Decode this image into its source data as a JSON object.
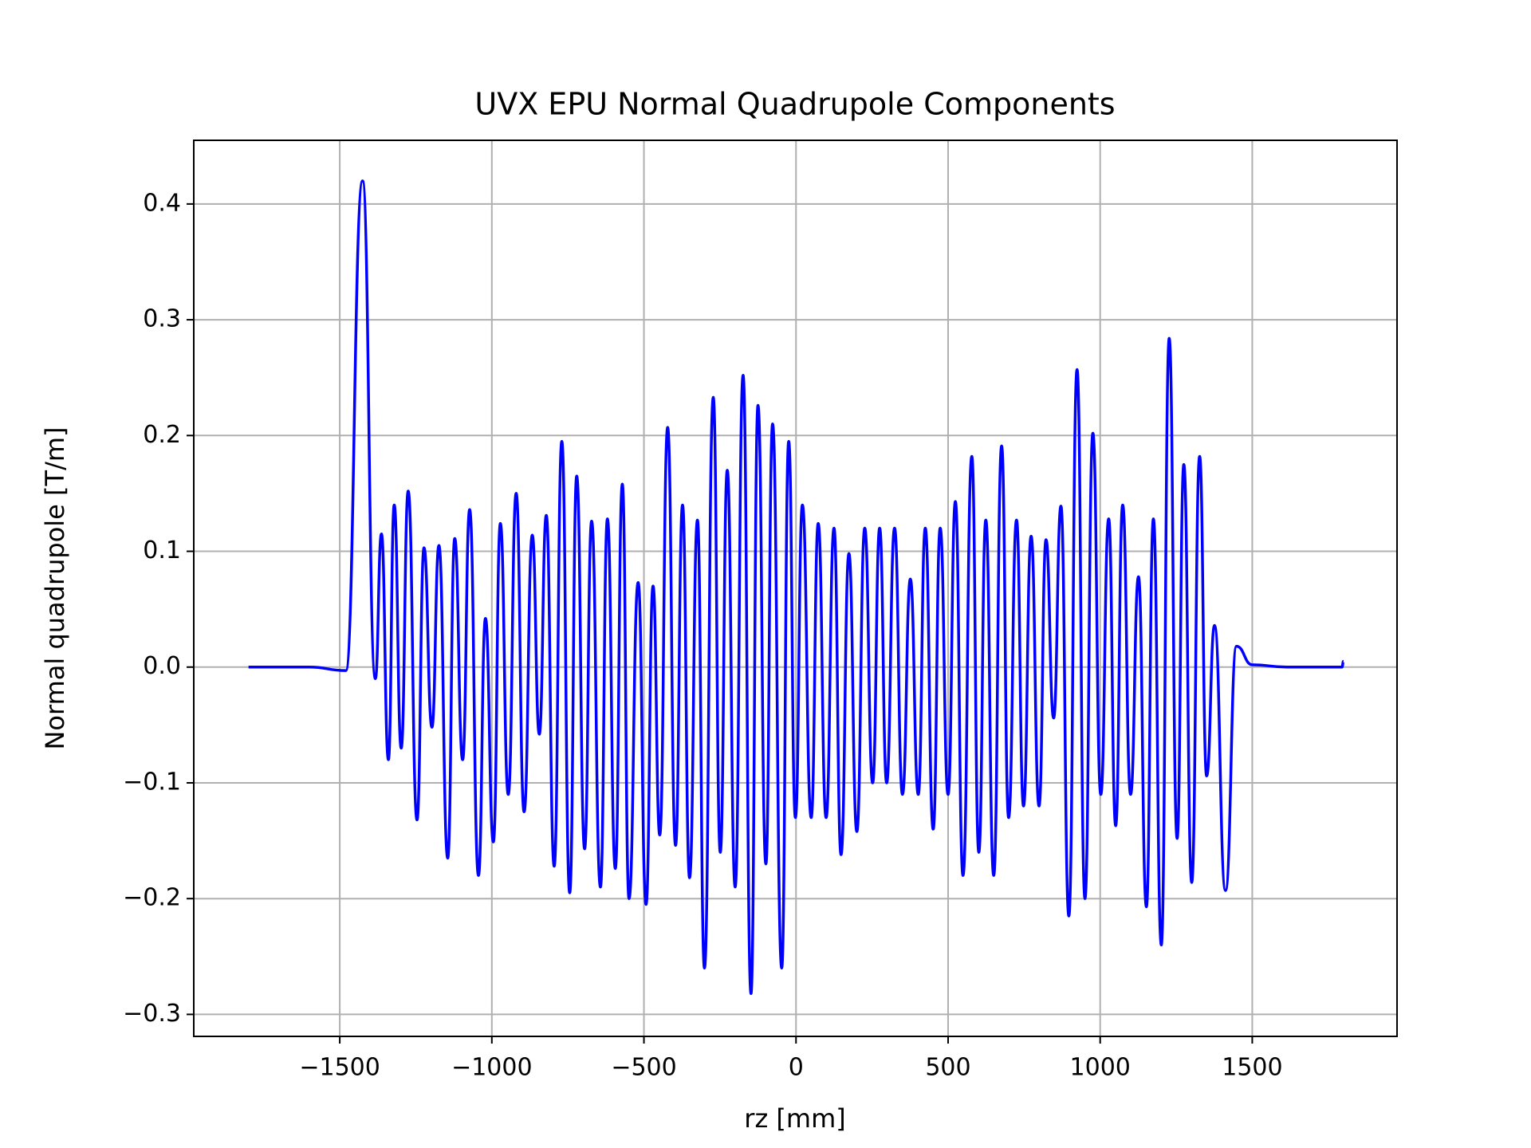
{
  "chart_data": {
    "type": "line",
    "title": "UVX EPU Normal Quadrupole Components",
    "xlabel": "rz [mm]",
    "ylabel": "Normal quadrupole [T/m]",
    "color": "#0000ff",
    "grid": true,
    "xlim": [
      -1980,
      1976
    ],
    "ylim": [
      -0.319,
      0.455
    ],
    "xticks": [
      {
        "value": -1500,
        "label": "−1500"
      },
      {
        "value": -1000,
        "label": "−1000"
      },
      {
        "value": -500,
        "label": "−500"
      },
      0,
      500,
      1000,
      1500
    ],
    "yticks": [
      {
        "value": -0.3,
        "label": "−0.3"
      },
      {
        "value": -0.2,
        "label": "−0.2"
      },
      {
        "value": -0.1,
        "label": "−0.1"
      },
      {
        "value": 0,
        "label": "0.0"
      },
      0.1,
      0.2,
      0.3,
      0.4
    ],
    "x": [
      -1800,
      -1600,
      -1480,
      -1425,
      -1383,
      -1363,
      -1340,
      -1321,
      -1298,
      -1275,
      -1246,
      -1223,
      -1197,
      -1174,
      -1145,
      -1122,
      -1096,
      -1073,
      -1044,
      -1021,
      -995,
      -972,
      -946,
      -920,
      -894,
      -867,
      -844,
      -821,
      -795,
      -770,
      -744,
      -721,
      -695,
      -672,
      -643,
      -620,
      -594,
      -571,
      -549,
      -519,
      -493,
      -470,
      -448,
      -422,
      -396,
      -373,
      -350,
      -324,
      -301,
      -272,
      -249,
      -226,
      -200,
      -174,
      -148,
      -125,
      -99,
      -77,
      -47,
      -24,
      -2,
      21,
      50,
      73,
      99,
      125,
      148,
      174,
      200,
      226,
      252,
      275,
      298,
      324,
      350,
      376,
      402,
      425,
      451,
      474,
      500,
      524,
      549,
      578,
      601,
      624,
      650,
      676,
      699,
      725,
      748,
      773,
      799,
      822,
      847,
      871,
      897,
      924,
      950,
      976,
      1002,
      1028,
      1051,
      1074,
      1100,
      1126,
      1152,
      1175,
      1201,
      1227,
      1253,
      1275,
      1301,
      1327,
      1350,
      1376,
      1412,
      1448,
      1500,
      1614,
      1795,
      1800
    ],
    "values": [
      0,
      0,
      -0.003,
      0.42,
      -0.01,
      0.115,
      -0.08,
      0.14,
      -0.07,
      0.152,
      -0.132,
      0.103,
      -0.052,
      0.105,
      -0.165,
      0.111,
      -0.08,
      0.136,
      -0.18,
      0.042,
      -0.151,
      0.124,
      -0.11,
      0.15,
      -0.125,
      0.114,
      -0.058,
      0.131,
      -0.172,
      0.195,
      -0.195,
      0.165,
      -0.157,
      0.126,
      -0.19,
      0.128,
      -0.174,
      0.158,
      -0.2,
      0.073,
      -0.205,
      0.07,
      -0.145,
      0.207,
      -0.154,
      0.14,
      -0.182,
      0.127,
      -0.26,
      0.233,
      -0.16,
      0.17,
      -0.19,
      0.252,
      -0.282,
      0.226,
      -0.17,
      0.21,
      -0.26,
      0.195,
      -0.13,
      0.14,
      -0.13,
      0.124,
      -0.13,
      0.12,
      -0.162,
      0.098,
      -0.142,
      0.12,
      -0.1,
      0.12,
      -0.1,
      0.12,
      -0.11,
      0.076,
      -0.11,
      0.12,
      -0.14,
      0.12,
      -0.11,
      0.143,
      -0.18,
      0.182,
      -0.16,
      0.127,
      -0.18,
      0.191,
      -0.13,
      0.127,
      -0.12,
      0.113,
      -0.12,
      0.11,
      -0.044,
      0.139,
      -0.215,
      0.257,
      -0.2,
      0.202,
      -0.11,
      0.128,
      -0.137,
      0.14,
      -0.11,
      0.078,
      -0.207,
      0.128,
      -0.24,
      0.284,
      -0.148,
      0.175,
      -0.186,
      0.182,
      -0.094,
      0.036,
      -0.193,
      0.018,
      0.002,
      0,
      0,
      0.005
    ]
  }
}
